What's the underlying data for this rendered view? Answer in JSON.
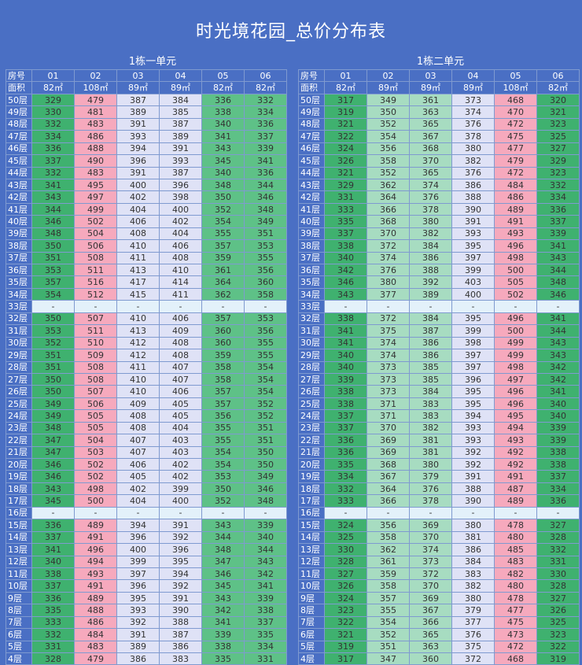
{
  "title": "时光境花园_总价分布表",
  "row_labels": {
    "unit": "房号",
    "area": "面积"
  },
  "buildings": [
    {
      "name": "1栋一单元",
      "units": [
        "01",
        "02",
        "03",
        "04",
        "05",
        "06"
      ],
      "areas": [
        "82㎡",
        "108㎡",
        "89㎡",
        "89㎡",
        "82㎡",
        "82㎡"
      ],
      "colors": [
        "g",
        "p",
        "w",
        "w",
        "g1",
        "g1"
      ],
      "rows": [
        [
          "50层",
          "329",
          "479",
          "387",
          "384",
          "336",
          "332"
        ],
        [
          "49层",
          "330",
          "481",
          "389",
          "385",
          "338",
          "334"
        ],
        [
          "48层",
          "332",
          "483",
          "391",
          "387",
          "340",
          "336"
        ],
        [
          "47层",
          "334",
          "486",
          "393",
          "389",
          "341",
          "337"
        ],
        [
          "46层",
          "336",
          "488",
          "394",
          "391",
          "343",
          "339"
        ],
        [
          "45层",
          "337",
          "490",
          "396",
          "393",
          "345",
          "341"
        ],
        [
          "44层",
          "332",
          "483",
          "391",
          "387",
          "340",
          "336"
        ],
        [
          "43层",
          "341",
          "495",
          "400",
          "396",
          "348",
          "344"
        ],
        [
          "42层",
          "343",
          "497",
          "402",
          "398",
          "350",
          "346"
        ],
        [
          "41层",
          "344",
          "499",
          "404",
          "400",
          "352",
          "348"
        ],
        [
          "40层",
          "346",
          "502",
          "406",
          "402",
          "354",
          "349"
        ],
        [
          "39层",
          "348",
          "504",
          "408",
          "404",
          "355",
          "351"
        ],
        [
          "38层",
          "350",
          "506",
          "410",
          "406",
          "357",
          "353"
        ],
        [
          "37层",
          "351",
          "508",
          "411",
          "408",
          "359",
          "355"
        ],
        [
          "36层",
          "353",
          "511",
          "413",
          "410",
          "361",
          "356"
        ],
        [
          "35层",
          "357",
          "516",
          "417",
          "414",
          "364",
          "360"
        ],
        [
          "34层",
          "354",
          "512",
          "415",
          "411",
          "362",
          "358"
        ],
        [
          "33层",
          "-",
          "-",
          "-",
          "-",
          "-",
          "-"
        ],
        [
          "32层",
          "350",
          "507",
          "410",
          "406",
          "357",
          "353"
        ],
        [
          "31层",
          "353",
          "511",
          "413",
          "409",
          "360",
          "356"
        ],
        [
          "30层",
          "352",
          "510",
          "412",
          "408",
          "360",
          "355"
        ],
        [
          "29层",
          "351",
          "509",
          "412",
          "408",
          "359",
          "355"
        ],
        [
          "28层",
          "351",
          "508",
          "411",
          "407",
          "358",
          "354"
        ],
        [
          "27层",
          "350",
          "508",
          "410",
          "407",
          "358",
          "354"
        ],
        [
          "26层",
          "350",
          "507",
          "410",
          "406",
          "357",
          "354"
        ],
        [
          "25层",
          "349",
          "506",
          "409",
          "405",
          "357",
          "352"
        ],
        [
          "24层",
          "349",
          "505",
          "408",
          "405",
          "356",
          "352"
        ],
        [
          "23层",
          "348",
          "505",
          "408",
          "404",
          "355",
          "351"
        ],
        [
          "22层",
          "347",
          "504",
          "407",
          "403",
          "355",
          "351"
        ],
        [
          "21层",
          "347",
          "503",
          "407",
          "403",
          "354",
          "350"
        ],
        [
          "20层",
          "346",
          "502",
          "406",
          "402",
          "354",
          "350"
        ],
        [
          "19层",
          "346",
          "502",
          "405",
          "402",
          "353",
          "349"
        ],
        [
          "18层",
          "343",
          "498",
          "402",
          "399",
          "350",
          "346"
        ],
        [
          "17层",
          "345",
          "500",
          "404",
          "400",
          "352",
          "348"
        ],
        [
          "16层",
          "-",
          "-",
          "-",
          "-",
          "-",
          "-"
        ],
        [
          "15层",
          "336",
          "489",
          "394",
          "391",
          "343",
          "339"
        ],
        [
          "14层",
          "337",
          "491",
          "396",
          "392",
          "344",
          "340"
        ],
        [
          "13层",
          "341",
          "496",
          "400",
          "396",
          "348",
          "344"
        ],
        [
          "12层",
          "340",
          "494",
          "399",
          "395",
          "347",
          "343"
        ],
        [
          "11层",
          "338",
          "493",
          "397",
          "394",
          "346",
          "342"
        ],
        [
          "10层",
          "337",
          "491",
          "396",
          "392",
          "345",
          "341"
        ],
        [
          "9层",
          "336",
          "489",
          "395",
          "391",
          "343",
          "339"
        ],
        [
          "8层",
          "335",
          "488",
          "393",
          "390",
          "342",
          "338"
        ],
        [
          "7层",
          "333",
          "486",
          "392",
          "388",
          "341",
          "337"
        ],
        [
          "6层",
          "332",
          "484",
          "391",
          "387",
          "339",
          "335"
        ],
        [
          "5层",
          "331",
          "483",
          "389",
          "386",
          "338",
          "334"
        ],
        [
          "4层",
          "328",
          "479",
          "386",
          "383",
          "335",
          "331"
        ]
      ]
    },
    {
      "name": "1栋二单元",
      "units": [
        "01",
        "02",
        "03",
        "04",
        "05",
        "06"
      ],
      "areas": [
        "82㎡",
        "89㎡",
        "89㎡",
        "89㎡",
        "108㎡",
        "82㎡"
      ],
      "colors": [
        "g",
        "t",
        "t",
        "w",
        "p",
        "g"
      ],
      "rows": [
        [
          "50层",
          "317",
          "349",
          "361",
          "373",
          "468",
          "320"
        ],
        [
          "49层",
          "319",
          "350",
          "363",
          "374",
          "470",
          "321"
        ],
        [
          "48层",
          "321",
          "352",
          "365",
          "376",
          "472",
          "323"
        ],
        [
          "47层",
          "322",
          "354",
          "367",
          "378",
          "475",
          "325"
        ],
        [
          "46层",
          "324",
          "356",
          "368",
          "380",
          "477",
          "327"
        ],
        [
          "45层",
          "326",
          "358",
          "370",
          "382",
          "479",
          "329"
        ],
        [
          "44层",
          "321",
          "352",
          "365",
          "376",
          "472",
          "323"
        ],
        [
          "43层",
          "329",
          "362",
          "374",
          "386",
          "484",
          "332"
        ],
        [
          "42层",
          "331",
          "364",
          "376",
          "388",
          "486",
          "334"
        ],
        [
          "41层",
          "333",
          "366",
          "378",
          "390",
          "489",
          "336"
        ],
        [
          "40层",
          "335",
          "368",
          "380",
          "391",
          "491",
          "337"
        ],
        [
          "39层",
          "337",
          "370",
          "382",
          "393",
          "493",
          "339"
        ],
        [
          "38层",
          "338",
          "372",
          "384",
          "395",
          "496",
          "341"
        ],
        [
          "37层",
          "340",
          "374",
          "386",
          "397",
          "498",
          "343"
        ],
        [
          "36层",
          "342",
          "376",
          "388",
          "399",
          "500",
          "344"
        ],
        [
          "35层",
          "346",
          "380",
          "392",
          "403",
          "505",
          "348"
        ],
        [
          "34层",
          "343",
          "377",
          "389",
          "400",
          "502",
          "346"
        ],
        [
          "33层",
          "-",
          "-",
          "-",
          "-",
          "-",
          "-"
        ],
        [
          "32层",
          "338",
          "372",
          "384",
          "395",
          "496",
          "341"
        ],
        [
          "31层",
          "341",
          "375",
          "387",
          "399",
          "500",
          "344"
        ],
        [
          "30层",
          "341",
          "374",
          "386",
          "398",
          "499",
          "343"
        ],
        [
          "29层",
          "340",
          "374",
          "386",
          "397",
          "499",
          "343"
        ],
        [
          "28层",
          "340",
          "373",
          "385",
          "397",
          "498",
          "342"
        ],
        [
          "27层",
          "339",
          "373",
          "385",
          "396",
          "497",
          "342"
        ],
        [
          "26层",
          "338",
          "373",
          "384",
          "395",
          "496",
          "341"
        ],
        [
          "25层",
          "338",
          "371",
          "383",
          "395",
          "496",
          "340"
        ],
        [
          "24层",
          "337",
          "371",
          "383",
          "394",
          "495",
          "340"
        ],
        [
          "23层",
          "337",
          "370",
          "382",
          "393",
          "494",
          "339"
        ],
        [
          "22层",
          "336",
          "369",
          "381",
          "393",
          "493",
          "339"
        ],
        [
          "21层",
          "336",
          "369",
          "381",
          "392",
          "492",
          "338"
        ],
        [
          "20层",
          "335",
          "368",
          "380",
          "392",
          "492",
          "338"
        ],
        [
          "19层",
          "334",
          "367",
          "379",
          "391",
          "491",
          "337"
        ],
        [
          "18层",
          "332",
          "364",
          "376",
          "388",
          "487",
          "334"
        ],
        [
          "17层",
          "333",
          "366",
          "378",
          "390",
          "489",
          "336"
        ],
        [
          "16层",
          "-",
          "-",
          "-",
          "-",
          "-",
          "-"
        ],
        [
          "15层",
          "324",
          "356",
          "369",
          "380",
          "478",
          "327"
        ],
        [
          "14层",
          "325",
          "358",
          "370",
          "381",
          "480",
          "328"
        ],
        [
          "13层",
          "330",
          "362",
          "374",
          "386",
          "485",
          "332"
        ],
        [
          "12层",
          "328",
          "361",
          "373",
          "384",
          "483",
          "331"
        ],
        [
          "11层",
          "327",
          "359",
          "372",
          "383",
          "482",
          "330"
        ],
        [
          "10层",
          "326",
          "358",
          "370",
          "382",
          "480",
          "328"
        ],
        [
          "9层",
          "324",
          "357",
          "369",
          "380",
          "478",
          "327"
        ],
        [
          "8层",
          "323",
          "355",
          "367",
          "379",
          "477",
          "326"
        ],
        [
          "7层",
          "322",
          "354",
          "366",
          "377",
          "475",
          "325"
        ],
        [
          "6层",
          "321",
          "352",
          "365",
          "376",
          "473",
          "323"
        ],
        [
          "5层",
          "319",
          "351",
          "363",
          "375",
          "472",
          "322"
        ],
        [
          "4层",
          "317",
          "347",
          "360",
          "372",
          "468",
          "319"
        ]
      ]
    }
  ]
}
